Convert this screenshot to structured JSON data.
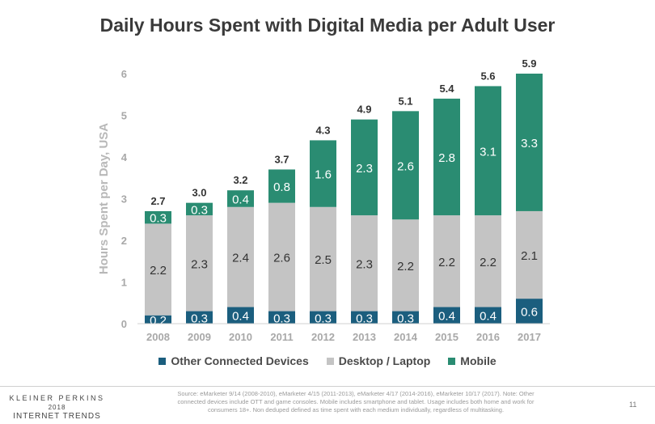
{
  "chart_data": {
    "type": "bar",
    "stacked": true,
    "title": "Daily Hours Spent with Digital Media per Adult User",
    "xlabel": "",
    "ylabel": "Hours Spent per Day, USA",
    "ylim": [
      0,
      6
    ],
    "yticks": [
      "0",
      "1",
      "2",
      "3",
      "4",
      "5",
      "6"
    ],
    "grid": false,
    "legend_position": "bottom",
    "categories": [
      "2008",
      "2009",
      "2010",
      "2011",
      "2012",
      "2013",
      "2014",
      "2015",
      "2016",
      "2017"
    ],
    "series": [
      {
        "name": "Other Connected Devices",
        "color": "#1b5e7e",
        "values": [
          0.2,
          0.3,
          0.4,
          0.3,
          0.3,
          0.3,
          0.3,
          0.4,
          0.4,
          0.6
        ],
        "labels": [
          "0.2",
          "0.3",
          "0.4",
          "0.3",
          "0.3",
          "0.3",
          "0.3",
          "0.4",
          "0.4",
          "0.6"
        ]
      },
      {
        "name": "Desktop / Laptop",
        "color": "#c4c4c4",
        "values": [
          2.2,
          2.3,
          2.4,
          2.6,
          2.5,
          2.3,
          2.2,
          2.2,
          2.2,
          2.1
        ],
        "labels": [
          "2.2",
          "2.3",
          "2.4",
          "2.6",
          "2.5",
          "2.3",
          "2.2",
          "2.2",
          "2.2",
          "2.1"
        ]
      },
      {
        "name": "Mobile",
        "color": "#2a8c72",
        "values": [
          0.3,
          0.3,
          0.4,
          0.8,
          1.6,
          2.3,
          2.6,
          2.8,
          3.1,
          3.3
        ],
        "labels": [
          "0.3",
          "0.3",
          "0.4",
          "0.8",
          "1.6",
          "2.3",
          "2.6",
          "2.8",
          "3.1",
          "3.3"
        ]
      }
    ],
    "totals": [
      2.7,
      3.0,
      3.2,
      3.7,
      4.3,
      4.9,
      5.1,
      5.4,
      5.6,
      5.9
    ],
    "total_labels": [
      "2.7",
      "3.0",
      "3.2",
      "3.7",
      "4.3",
      "4.9",
      "5.1",
      "5.4",
      "5.6",
      "5.9"
    ]
  },
  "footer": {
    "logo_line1": "KLEINER PERKINS",
    "logo_line2": "2018",
    "logo_line3": "INTERNET TRENDS",
    "source": "Source: eMarketer 9/14 (2008-2010), eMarketer 4/15 (2011-2013), eMarketer 4/17 (2014-2016), eMarketer 10/17 (2017). Note: Other connected devices include OTT and game consoles. Mobile includes smartphone and tablet. Usage includes both home and work for consumers 18+. Non deduped defined as time spent with each medium individually, regardless of multitasking.",
    "page_number": "11"
  }
}
